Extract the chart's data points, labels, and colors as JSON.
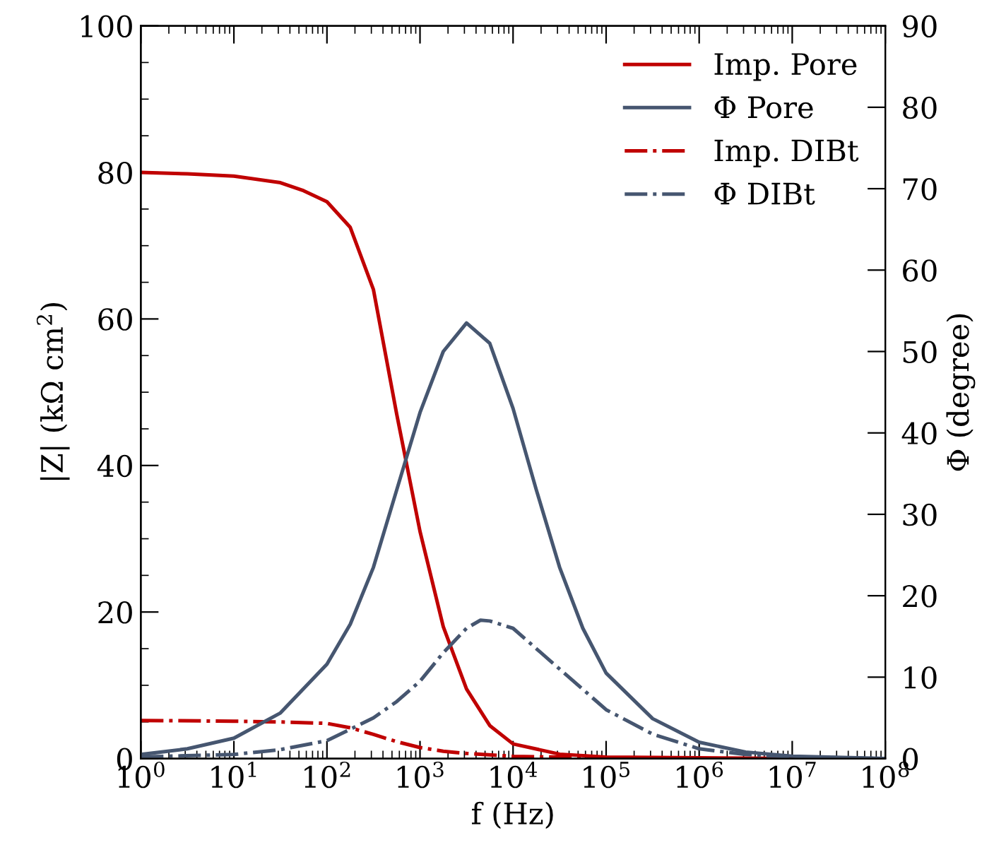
{
  "chart_data": {
    "type": "line",
    "xlabel": "f (Hz)",
    "ylabel": "|Z| (kΩ cm$^{2}$)",
    "y2label": "Φ (degree)",
    "log": "x",
    "legend": "top right",
    "grid": false,
    "xlim": [
      1,
      100000000
    ],
    "xticks": [
      {
        "value": 1,
        "label": "10$^{0}$"
      },
      {
        "value": 10,
        "label": "10$^{1}$"
      },
      {
        "value": 100,
        "label": "10$^{2}$"
      },
      {
        "value": 1000,
        "label": "10$^{3}$"
      },
      {
        "value": 10000,
        "label": "10$^{4}$"
      },
      {
        "value": 100000,
        "label": "10$^{5}$"
      },
      {
        "value": 1000000,
        "label": "10$^{6}$"
      },
      {
        "value": 10000000,
        "label": "10$^{7}$"
      },
      {
        "value": 100000000,
        "label": "10$^{8}$"
      }
    ],
    "ylim": [
      0,
      100
    ],
    "yticks": [
      0,
      20,
      40,
      60,
      80,
      100
    ],
    "y2lim": [
      0,
      90
    ],
    "y2ticks": [
      0,
      10,
      20,
      30,
      40,
      50,
      60,
      70,
      80,
      90
    ],
    "series": [
      {
        "name": "Imp. Pore",
        "color": "#c00000",
        "line_style": "solid",
        "x": [
          1,
          3.16,
          10,
          31.6,
          56.2,
          100,
          178,
          316,
          562,
          1000,
          1778,
          3162,
          5623,
          10000,
          31623,
          100000,
          1000000,
          10000000,
          100000000
        ],
        "values": [
          80,
          79.8,
          79.5,
          78.6,
          77.5,
          76,
          72.5,
          64,
          47,
          31,
          18,
          9.5,
          4.5,
          2,
          0.6,
          0.2,
          0.1,
          0,
          0
        ]
      },
      {
        "name": "Φ Pore",
        "color": "#465670",
        "axis": "y2",
        "line_style": "solid",
        "x": [
          1,
          3.16,
          10,
          31.6,
          100,
          178,
          316,
          562,
          1000,
          1778,
          3162,
          5623,
          10000,
          17783,
          31623,
          56234,
          100000,
          316228,
          1000000,
          3162278,
          10000000,
          100000000
        ],
        "values": [
          0.5,
          1.2,
          2.5,
          5.6,
          11.6,
          16.5,
          23.5,
          33,
          42.5,
          50,
          53.5,
          51,
          43,
          33,
          23.5,
          16,
          10.5,
          4.9,
          2,
          0.8,
          0.3,
          0
        ]
      },
      {
        "name": "Imp. DIBt",
        "color": "#c00000",
        "line_style": "dashdot",
        "x": [
          1,
          10,
          31.6,
          100,
          178,
          316,
          562,
          1000,
          1778,
          3162,
          10000,
          100000,
          1000000,
          100000000
        ],
        "values": [
          5.2,
          5.1,
          5,
          4.8,
          4.2,
          3.3,
          2.3,
          1.5,
          1,
          0.7,
          0.3,
          0.1,
          0,
          0
        ]
      },
      {
        "name": "Φ DIBt",
        "color": "#465670",
        "axis": "y2",
        "line_style": "dashdot",
        "x": [
          1,
          10,
          31.6,
          100,
          316,
          562,
          1000,
          1778,
          3162,
          4467,
          5623,
          10000,
          17783,
          31623,
          56234,
          100000,
          316228,
          1000000,
          3162278,
          10000000,
          100000000
        ],
        "values": [
          0.2,
          0.5,
          1.1,
          2.2,
          5,
          7,
          9.5,
          13,
          16,
          17,
          16.9,
          16,
          13.5,
          11,
          8.5,
          6,
          3,
          1.2,
          0.5,
          0.2,
          0
        ]
      }
    ]
  }
}
